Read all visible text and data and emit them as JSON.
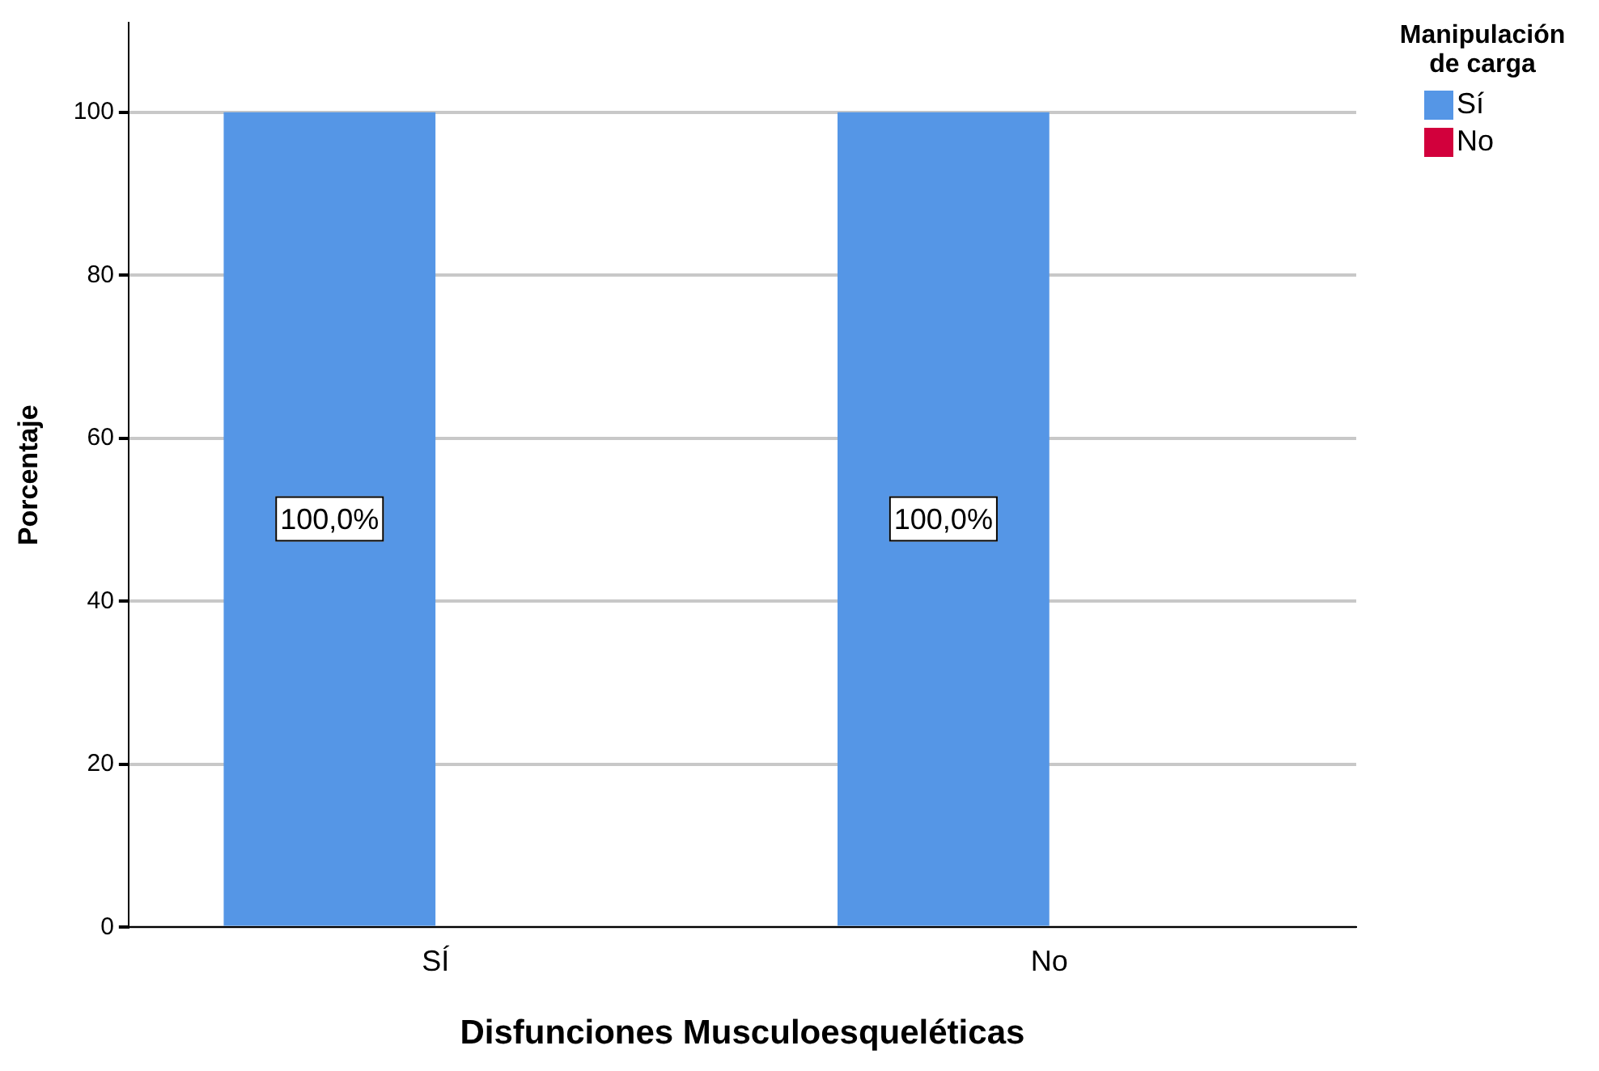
{
  "chart_data": {
    "type": "bar",
    "xlabel": "Disfunciones Musculoesqueléticas",
    "ylabel": "Porcentaje",
    "legend_title": "Manipulación de carga",
    "categories": [
      "SÍ",
      "No"
    ],
    "series": [
      {
        "name": "Sí",
        "color": "#5596e6",
        "values": [
          100,
          100
        ],
        "value_labels": [
          "100,0%",
          "100,0%"
        ]
      },
      {
        "name": "No",
        "color": "#d2003c",
        "values": [
          0,
          0
        ]
      }
    ],
    "ylim": [
      0,
      111
    ],
    "yticks": [
      0,
      20,
      40,
      60,
      80,
      100
    ],
    "grid": "y",
    "legend": "top right"
  }
}
